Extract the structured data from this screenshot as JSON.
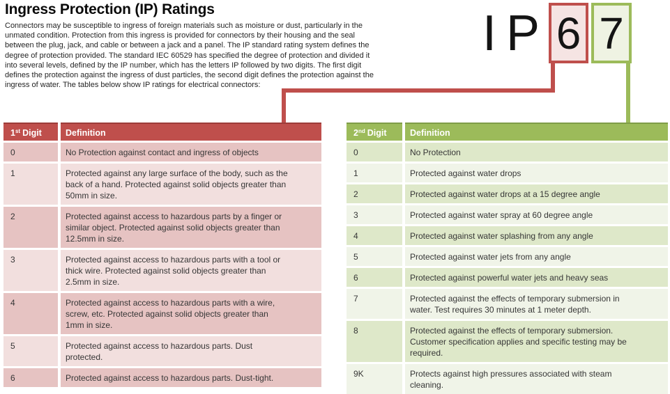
{
  "page": {
    "title": "Ingress Protection (IP) Ratings",
    "intro": "Connectors may be susceptible to ingress of foreign materials such as moisture or dust, particularly in the\nunmated condition. Protection from this ingress is provided for connectors by their housing and the seal\nbetween the plug, jack, and cable or between a jack and a panel. The IP standard rating system defines the\ndegree of protection provided. The standard IEC 60529 has specified the degree of protection and divided it\ninto several levels, defined by the IP number, which has the letters IP followed by two digits. The first digit\ndefines the protection against the ingress of dust particles, the second digit defines the protection against the\ningress of water. The tables below show IP ratings for electrical connectors:"
  },
  "ip_graphic": {
    "prefix": "IP",
    "first_digit": "6",
    "second_digit": "7"
  },
  "colors": {
    "first_digit_accent": "#bf4f4c",
    "first_digit_row_dark": "#e6c3c2",
    "first_digit_row_light": "#f2dfde",
    "second_digit_accent": "#9cbb5a",
    "second_digit_row_dark": "#dee8c9",
    "second_digit_row_light": "#f0f4e8"
  },
  "first_digit_table": {
    "header": {
      "digit_num": "1",
      "digit_sup": "st",
      "digit_word": "Digit",
      "definition": "Definition"
    },
    "rows": [
      {
        "digit": "0",
        "definition": "No Protection against contact and ingress of objects"
      },
      {
        "digit": "1",
        "definition": "Protected against any large surface of the body, such as the\nback of a hand. Protected against solid objects greater than\n50mm in size."
      },
      {
        "digit": "2",
        "definition": "Protected against access to hazardous parts by a finger or\nsimilar object. Protected against solid objects greater than\n12.5mm in size."
      },
      {
        "digit": "3",
        "definition": "Protected against access to hazardous parts with a tool or\nthick wire. Protected against solid objects greater than\n2.5mm in size."
      },
      {
        "digit": "4",
        "definition": "Protected against access to hazardous parts with a wire,\nscrew, etc. Protected against solid objects greater than\n1mm in size."
      },
      {
        "digit": "5",
        "definition": "Protected against access to hazardous parts. Dust\nprotected."
      },
      {
        "digit": "6",
        "definition": "Protected against access to hazardous parts. Dust-tight."
      }
    ]
  },
  "second_digit_table": {
    "header": {
      "digit_num": "2",
      "digit_sup": "nd",
      "digit_word": "Digit",
      "definition": "Definition"
    },
    "rows": [
      {
        "digit": "0",
        "definition": "No Protection"
      },
      {
        "digit": "1",
        "definition": "Protected against water drops"
      },
      {
        "digit": "2",
        "definition": "Protected against water drops at a 15 degree angle"
      },
      {
        "digit": "3",
        "definition": "Protected against water spray at 60 degree angle"
      },
      {
        "digit": "4",
        "definition": "Protected against water splashing from any angle"
      },
      {
        "digit": "5",
        "definition": "Protected against water jets from any angle"
      },
      {
        "digit": "6",
        "definition": "Protected against powerful water jets and heavy seas"
      },
      {
        "digit": "7",
        "definition": "Protected against the effects of temporary submersion in\nwater. Test requires 30 minutes at 1 meter depth."
      },
      {
        "digit": "8",
        "definition": "Protected against the effects of temporary submersion.\nCustomer specification applies and specific testing may be\nrequired."
      },
      {
        "digit": "9K",
        "definition": "Protects against high pressures associated with steam\ncleaning."
      }
    ]
  }
}
